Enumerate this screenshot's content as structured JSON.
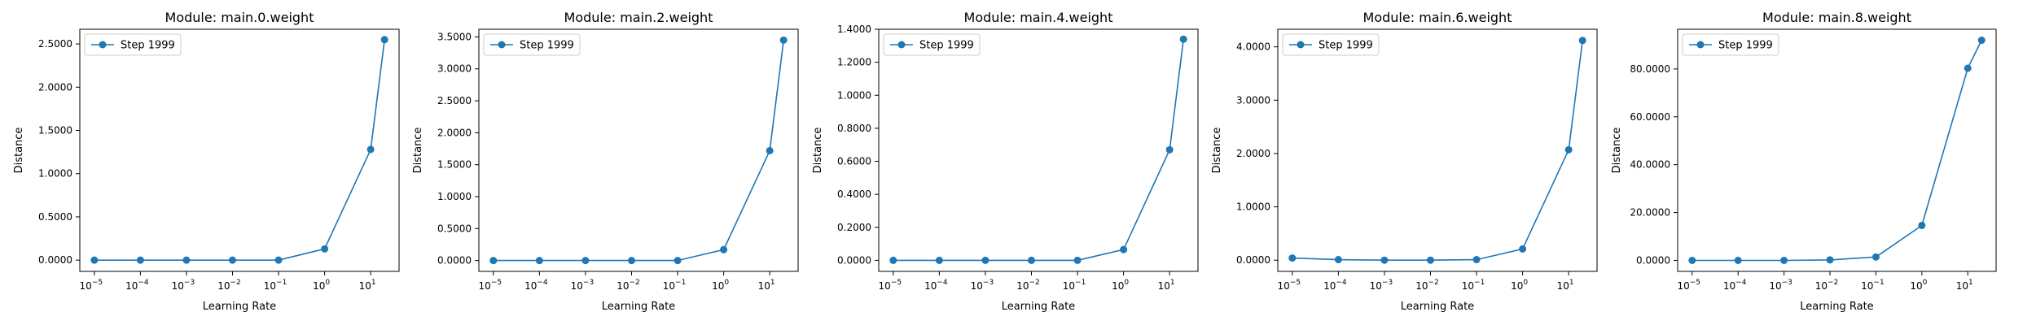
{
  "colors": {
    "series": "#1f77b4",
    "frame": "#000000",
    "legend_border": "#cccccc"
  },
  "chart_data": [
    {
      "type": "line",
      "title": "Module: main.0.weight",
      "xlabel": "Learning Rate",
      "ylabel": "Distance",
      "xscale": "log",
      "x": [
        1e-05,
        0.0001,
        0.001,
        0.01,
        0.1,
        1,
        10,
        20
      ],
      "x_ticks": [
        1e-05,
        0.0001,
        0.001,
        0.01,
        0.1,
        1,
        10
      ],
      "x_tick_labels": [
        [
          "10",
          "−5"
        ],
        [
          "10",
          "−4"
        ],
        [
          "10",
          "−3"
        ],
        [
          "10",
          "−2"
        ],
        [
          "10",
          "−1"
        ],
        [
          "10",
          "0"
        ],
        [
          "10",
          "1"
        ]
      ],
      "ylim": [
        -0.13,
        2.67
      ],
      "y_ticks": [
        0,
        0.5,
        1,
        1.5,
        2,
        2.5
      ],
      "y_tick_labels": [
        "0.0000",
        "0.5000",
        "1.0000",
        "1.5000",
        "2.0000",
        "2.5000"
      ],
      "series": [
        {
          "name": "Step 1999",
          "values": [
            0.0,
            0.0,
            0.0,
            0.0,
            0.0,
            0.13,
            1.28,
            2.55
          ]
        }
      ],
      "legend": "upper-left",
      "grid": false
    },
    {
      "type": "line",
      "title": "Module: main.2.weight",
      "xlabel": "Learning Rate",
      "ylabel": "Distance",
      "xscale": "log",
      "x": [
        1e-05,
        0.0001,
        0.001,
        0.01,
        0.1,
        1,
        10,
        20
      ],
      "x_ticks": [
        1e-05,
        0.0001,
        0.001,
        0.01,
        0.1,
        1,
        10
      ],
      "x_tick_labels": [
        [
          "10",
          "−5"
        ],
        [
          "10",
          "−4"
        ],
        [
          "10",
          "−3"
        ],
        [
          "10",
          "−2"
        ],
        [
          "10",
          "−1"
        ],
        [
          "10",
          "0"
        ],
        [
          "10",
          "1"
        ]
      ],
      "ylim": [
        -0.17,
        3.62
      ],
      "y_ticks": [
        0,
        0.5,
        1,
        1.5,
        2,
        2.5,
        3,
        3.5
      ],
      "y_tick_labels": [
        "0.0000",
        "0.5000",
        "1.0000",
        "1.5000",
        "2.0000",
        "2.5000",
        "3.0000",
        "3.5000"
      ],
      "series": [
        {
          "name": "Step 1999",
          "values": [
            0.0,
            0.0,
            0.0,
            0.0,
            0.0,
            0.17,
            1.72,
            3.45
          ]
        }
      ],
      "legend": "upper-left",
      "grid": false
    },
    {
      "type": "line",
      "title": "Module: main.4.weight",
      "xlabel": "Learning Rate",
      "ylabel": "Distance",
      "xscale": "log",
      "x": [
        1e-05,
        0.0001,
        0.001,
        0.01,
        0.1,
        1,
        10,
        20
      ],
      "x_ticks": [
        1e-05,
        0.0001,
        0.001,
        0.01,
        0.1,
        1,
        10
      ],
      "x_tick_labels": [
        [
          "10",
          "−5"
        ],
        [
          "10",
          "−4"
        ],
        [
          "10",
          "−3"
        ],
        [
          "10",
          "−2"
        ],
        [
          "10",
          "−1"
        ],
        [
          "10",
          "0"
        ],
        [
          "10",
          "1"
        ]
      ],
      "ylim": [
        -0.067,
        1.4
      ],
      "y_ticks": [
        0,
        0.2,
        0.4,
        0.6,
        0.8,
        1.0,
        1.2,
        1.4
      ],
      "y_tick_labels": [
        "0.0000",
        "0.2000",
        "0.4000",
        "0.6000",
        "0.8000",
        "1.0000",
        "1.2000",
        "1.4000"
      ],
      "series": [
        {
          "name": "Step 1999",
          "values": [
            0.0,
            0.0,
            0.0,
            0.0,
            0.0,
            0.065,
            0.67,
            1.34
          ]
        }
      ],
      "legend": "upper-left",
      "grid": false
    },
    {
      "type": "line",
      "title": "Module: main.6.weight",
      "xlabel": "Learning Rate",
      "ylabel": "Distance",
      "xscale": "log",
      "x": [
        1e-05,
        0.0001,
        0.001,
        0.01,
        0.1,
        1,
        10,
        20
      ],
      "x_ticks": [
        1e-05,
        0.0001,
        0.001,
        0.01,
        0.1,
        1,
        10
      ],
      "x_tick_labels": [
        [
          "10",
          "−5"
        ],
        [
          "10",
          "−4"
        ],
        [
          "10",
          "−3"
        ],
        [
          "10",
          "−2"
        ],
        [
          "10",
          "−1"
        ],
        [
          "10",
          "0"
        ],
        [
          "10",
          "1"
        ]
      ],
      "ylim": [
        -0.21,
        4.33
      ],
      "y_ticks": [
        0,
        1,
        2,
        3,
        4
      ],
      "y_tick_labels": [
        "0.0000",
        "1.0000",
        "2.0000",
        "3.0000",
        "4.0000"
      ],
      "series": [
        {
          "name": "Step 1999",
          "values": [
            0.04,
            0.01,
            0.0,
            0.0,
            0.01,
            0.21,
            2.07,
            4.12
          ]
        }
      ],
      "legend": "upper-left",
      "grid": false
    },
    {
      "type": "line",
      "title": "Module: main.8.weight",
      "xlabel": "Learning Rate",
      "ylabel": "Distance",
      "xscale": "log",
      "x": [
        1e-05,
        0.0001,
        0.001,
        0.01,
        0.1,
        1,
        10,
        20
      ],
      "x_ticks": [
        1e-05,
        0.0001,
        0.001,
        0.01,
        0.1,
        1,
        10
      ],
      "x_tick_labels": [
        [
          "10",
          "−5"
        ],
        [
          "10",
          "−4"
        ],
        [
          "10",
          "−3"
        ],
        [
          "10",
          "−2"
        ],
        [
          "10",
          "−1"
        ],
        [
          "10",
          "0"
        ],
        [
          "10",
          "1"
        ]
      ],
      "ylim": [
        -4.6,
        96.6
      ],
      "y_ticks": [
        0,
        20,
        40,
        60,
        80
      ],
      "y_tick_labels": [
        "0.0000",
        "20.0000",
        "40.0000",
        "60.0000",
        "80.0000"
      ],
      "series": [
        {
          "name": "Step 1999",
          "values": [
            0.0,
            0.0,
            0.0,
            0.2,
            1.4,
            14.6,
            80.3,
            92.0
          ]
        }
      ],
      "legend": "upper-left",
      "grid": false
    }
  ]
}
